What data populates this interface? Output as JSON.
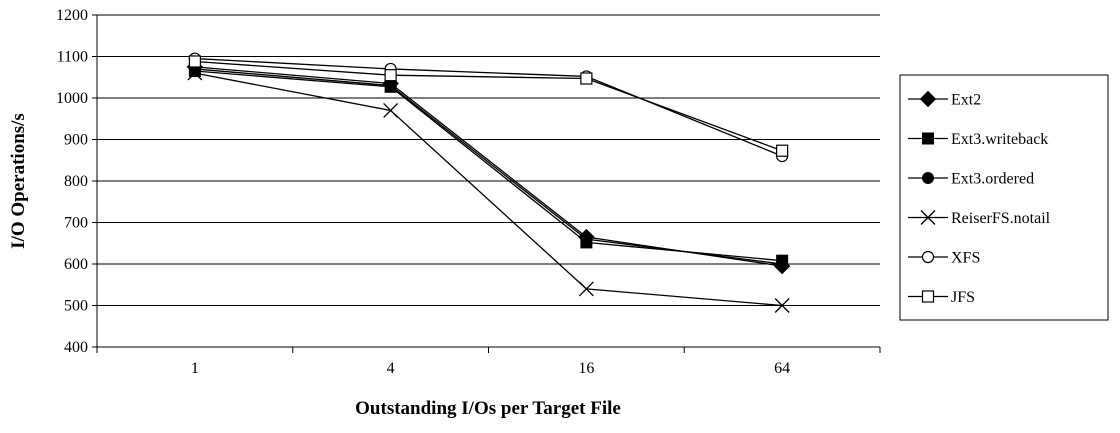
{
  "chart_data": {
    "type": "line",
    "title": "",
    "xlabel": "Outstanding I/Os per Target File",
    "ylabel": "I/O Operations/s",
    "categories": [
      "1",
      "4",
      "16",
      "64"
    ],
    "ylim": [
      400,
      1200
    ],
    "yticks": [
      400,
      500,
      600,
      700,
      800,
      900,
      1000,
      1100,
      1200
    ],
    "grid": "horizontal",
    "legend_position": "right",
    "series": [
      {
        "name": "Ext2",
        "marker": "diamond-filled",
        "values": [
          1075,
          1035,
          665,
          595
        ]
      },
      {
        "name": "Ext3.writeback",
        "marker": "square-filled",
        "values": [
          1065,
          1027,
          652,
          608
        ]
      },
      {
        "name": "Ext3.ordered",
        "marker": "circle-filled",
        "values": [
          1070,
          1030,
          660,
          600
        ]
      },
      {
        "name": "ReiserFS.notail",
        "marker": "x",
        "values": [
          1060,
          970,
          540,
          500
        ]
      },
      {
        "name": "XFS",
        "marker": "circle-open",
        "values": [
          1095,
          1070,
          1052,
          860
        ]
      },
      {
        "name": "JFS",
        "marker": "square-open",
        "values": [
          1088,
          1055,
          1047,
          873
        ]
      }
    ]
  }
}
